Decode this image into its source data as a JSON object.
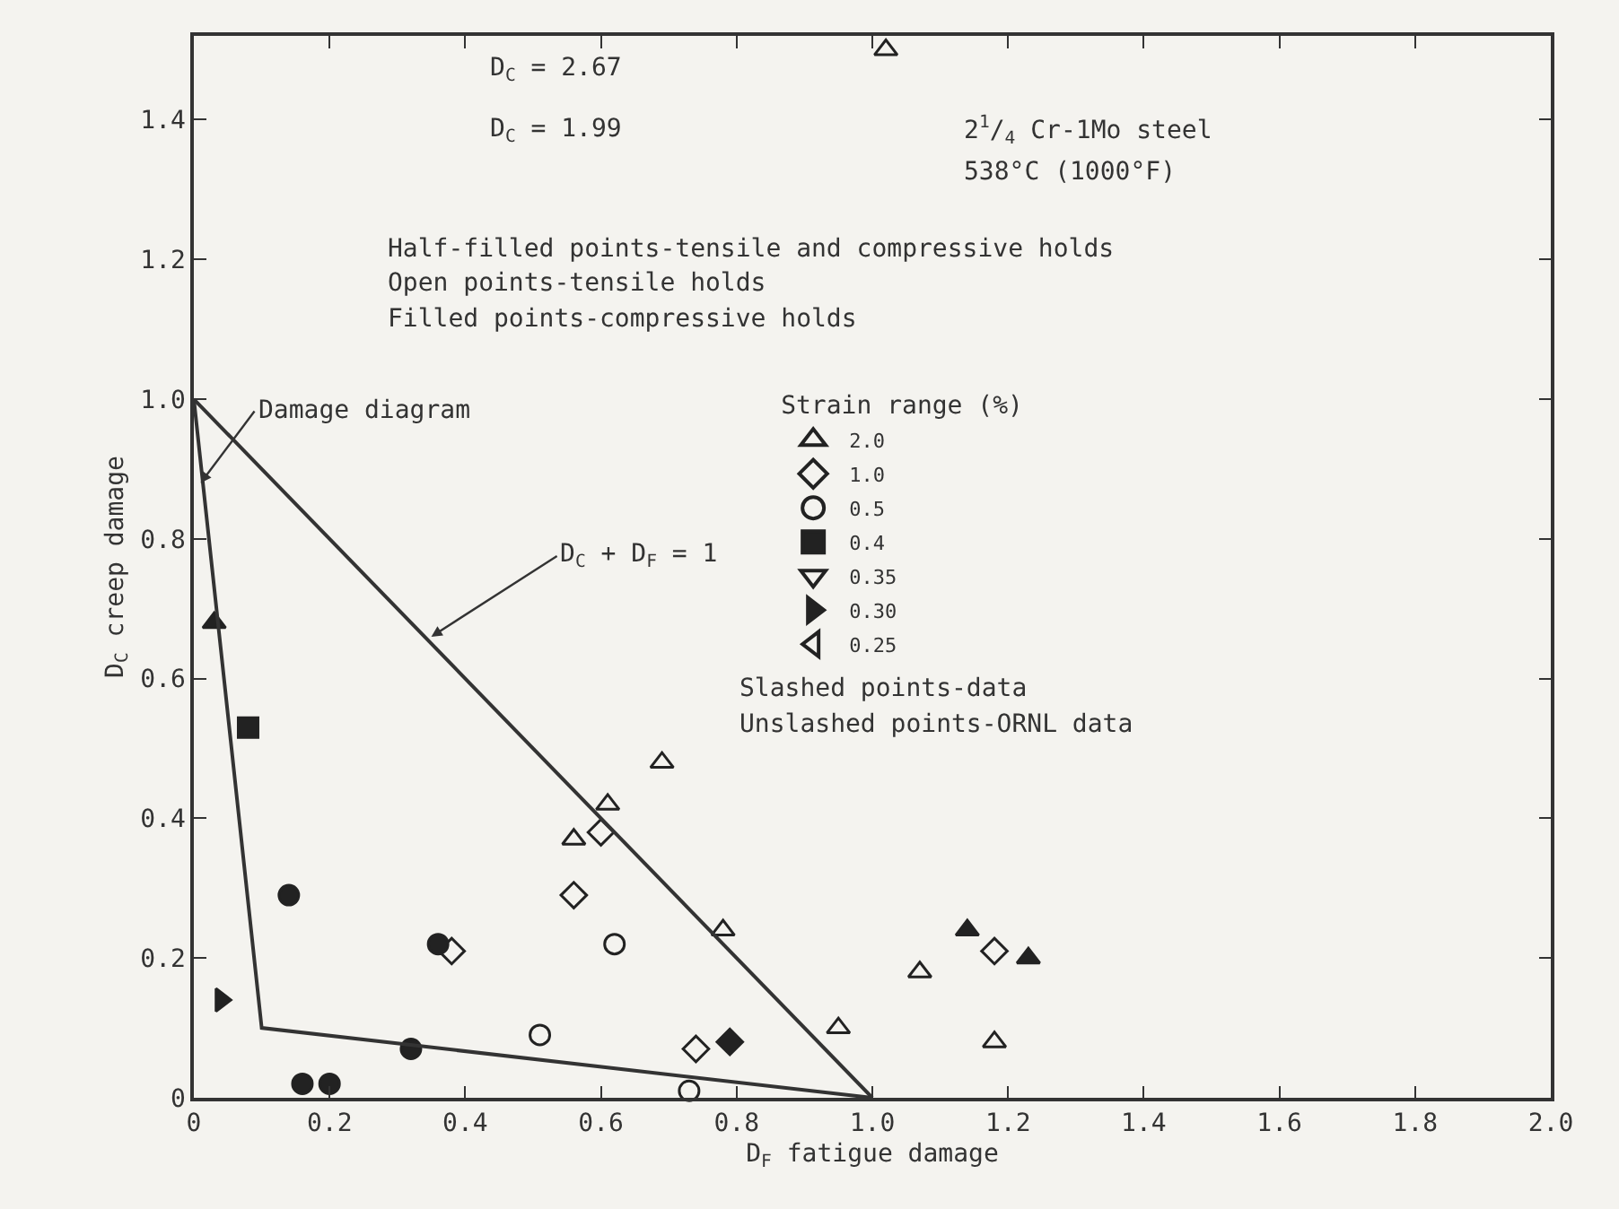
{
  "chart_data": {
    "type": "scatter",
    "xlabel": "D$_{F}$ fatigue damage",
    "ylabel": "D$_{C}$ creep damage",
    "legend_title": "Strain range (%)",
    "xlim": [
      0,
      2.0
    ],
    "ylim": [
      0,
      1.52
    ],
    "xticks": [
      {
        "value": 0,
        "label": "0"
      },
      0.2,
      0.4,
      0.6,
      0.8,
      {
        "value": 1,
        "label": "1.0"
      },
      1.2,
      1.4,
      1.6,
      1.8,
      {
        "value": 2,
        "label": "2.0"
      }
    ],
    "yticks": [
      {
        "value": 0,
        "label": "0"
      },
      0.2,
      0.4,
      0.6,
      0.8,
      {
        "value": 1,
        "label": "1.0"
      },
      1.2,
      1.4
    ],
    "grid": false,
    "legend": "top right",
    "series": [
      {
        "name": "2.0",
        "marker": "triangle-open",
        "color": "#222222",
        "x": [
          0.56,
          0.61,
          0.69,
          0.78,
          0.95,
          1.07,
          1.18,
          1.02
        ],
        "values": [
          0.37,
          0.42,
          0.48,
          0.24,
          0.1,
          0.18,
          0.08,
          1.5
        ]
      },
      {
        "marker": "triangle",
        "color": "#222222",
        "x": [
          0.03,
          1.14,
          1.23
        ],
        "values": [
          0.68,
          0.24,
          0.2
        ]
      },
      {
        "name": "1.0",
        "marker": "diamond-open",
        "color": "#222222",
        "x": [
          0.38,
          0.56,
          0.6,
          0.74,
          1.18
        ],
        "values": [
          0.21,
          0.29,
          0.38,
          0.07,
          0.21
        ]
      },
      {
        "marker": "diamond",
        "color": "#222222",
        "x": [
          0.79
        ],
        "values": [
          0.08
        ]
      },
      {
        "name": "0.5",
        "marker": "circle-open",
        "color": "#222222",
        "x": [
          0.51,
          0.62,
          0.73
        ],
        "values": [
          0.09,
          0.22,
          0.01
        ]
      },
      {
        "marker": "circle",
        "color": "#222222",
        "x": [
          0.14,
          0.16,
          0.2,
          0.32,
          0.36
        ],
        "values": [
          0.29,
          0.02,
          0.02,
          0.07,
          0.22
        ]
      },
      {
        "name": "0.4",
        "marker": "square",
        "color": "#222222",
        "x": [
          0.08
        ],
        "values": [
          0.53
        ]
      },
      {
        "name": "0.35",
        "marker": "triangle-down-open",
        "color": "#222222",
        "values": [
          null
        ]
      },
      {
        "name": "0.30",
        "marker": "triangle-right",
        "color": "#222222",
        "x": [
          0.04
        ],
        "values": [
          0.14
        ]
      },
      {
        "name": "0.25",
        "marker": "triangle-left-open",
        "color": "#222222",
        "values": [
          null
        ]
      },
      {
        "type": "line",
        "color": "#333333",
        "x": [
          0,
          1
        ],
        "values": [
          1,
          0
        ]
      },
      {
        "type": "line",
        "color": "#333333",
        "x": [
          0,
          0.1,
          1
        ],
        "values": [
          1,
          0.1,
          0
        ]
      }
    ],
    "annotations": [
      "D$_{C}$ = 2.67",
      "D$_{C}$ = 1.99",
      "2$^{1}$/$_{4}$ Cr-1Mo steel",
      "538°C (1000°F)",
      "Half-filled points-tensile and compressive holds",
      "Open points-tensile holds",
      "Filled points-compressive holds",
      "Slashed points-data",
      "Unslashed points-ORNL data",
      {
        "text": "Damage diagram",
        "x": 0.01,
        "y": 0.88
      },
      {
        "text": "D$_{C}$ + D$_{F}$ = 1",
        "x": 0.35,
        "y": 0.66
      }
    ]
  }
}
